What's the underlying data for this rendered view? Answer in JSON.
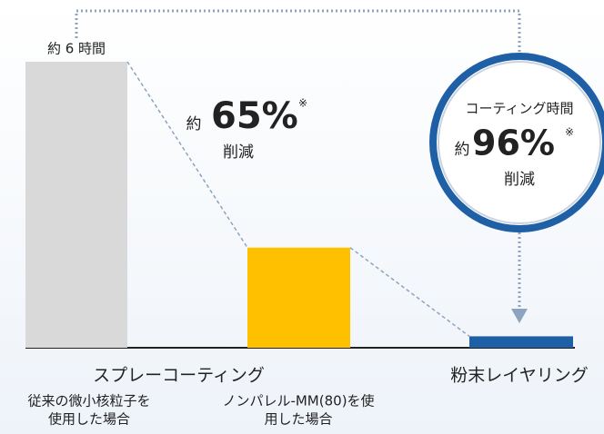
{
  "chart_data": {
    "type": "bar",
    "categories": [
      [
        "従来の微小核粒子を",
        "使用した場合"
      ],
      [
        "ノンパレル-MM(80)を使",
        "用した場合"
      ],
      [
        "粉末レイヤリング"
      ]
    ],
    "groups": [
      {
        "label": "スプレーコーティング",
        "members": [
          0,
          1
        ]
      }
    ],
    "values": [
      6,
      2.1,
      0.24
    ],
    "value_labels": [
      "約 6 時間",
      null,
      null
    ],
    "colors": [
      "#d9d9d9",
      "#ffc000",
      "#1f5fa6"
    ],
    "annotations": [
      {
        "prefix": "約",
        "main": "65%",
        "note": "※",
        "suffix": "削減",
        "color": "#ed7d31"
      },
      {
        "heading": "コーティング時間",
        "prefix": "約",
        "main": "96%",
        "note": "※",
        "suffix": "削減",
        "color": "#1f5fa6"
      }
    ]
  }
}
